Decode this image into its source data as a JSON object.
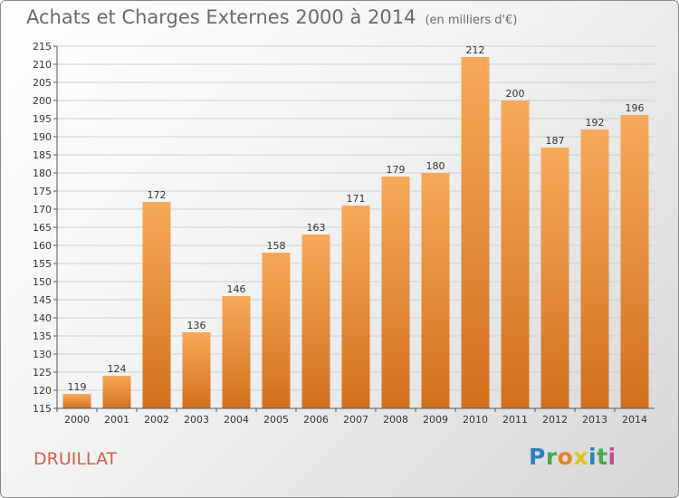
{
  "chart_data": {
    "type": "bar",
    "title": "Achats et Charges Externes 2000 à 2014",
    "subtitle": "(en milliers d'€)",
    "categories": [
      "2000",
      "2001",
      "2002",
      "2003",
      "2004",
      "2005",
      "2006",
      "2007",
      "2008",
      "2009",
      "2010",
      "2011",
      "2012",
      "2013",
      "2014"
    ],
    "values": [
      119,
      124,
      172,
      136,
      146,
      158,
      163,
      171,
      179,
      180,
      212,
      200,
      187,
      192,
      196
    ],
    "ylim": [
      115,
      215
    ],
    "yticks": [
      115,
      120,
      125,
      130,
      135,
      140,
      145,
      150,
      155,
      160,
      165,
      170,
      175,
      180,
      185,
      190,
      195,
      200,
      205,
      210,
      215
    ],
    "grid": true,
    "legend": "none",
    "colors": {
      "bar_light": "#f7a95a",
      "bar_dark": "#d2701d"
    }
  },
  "footer": {
    "commune": "DRUILLAT",
    "logo": "Proxiti"
  }
}
